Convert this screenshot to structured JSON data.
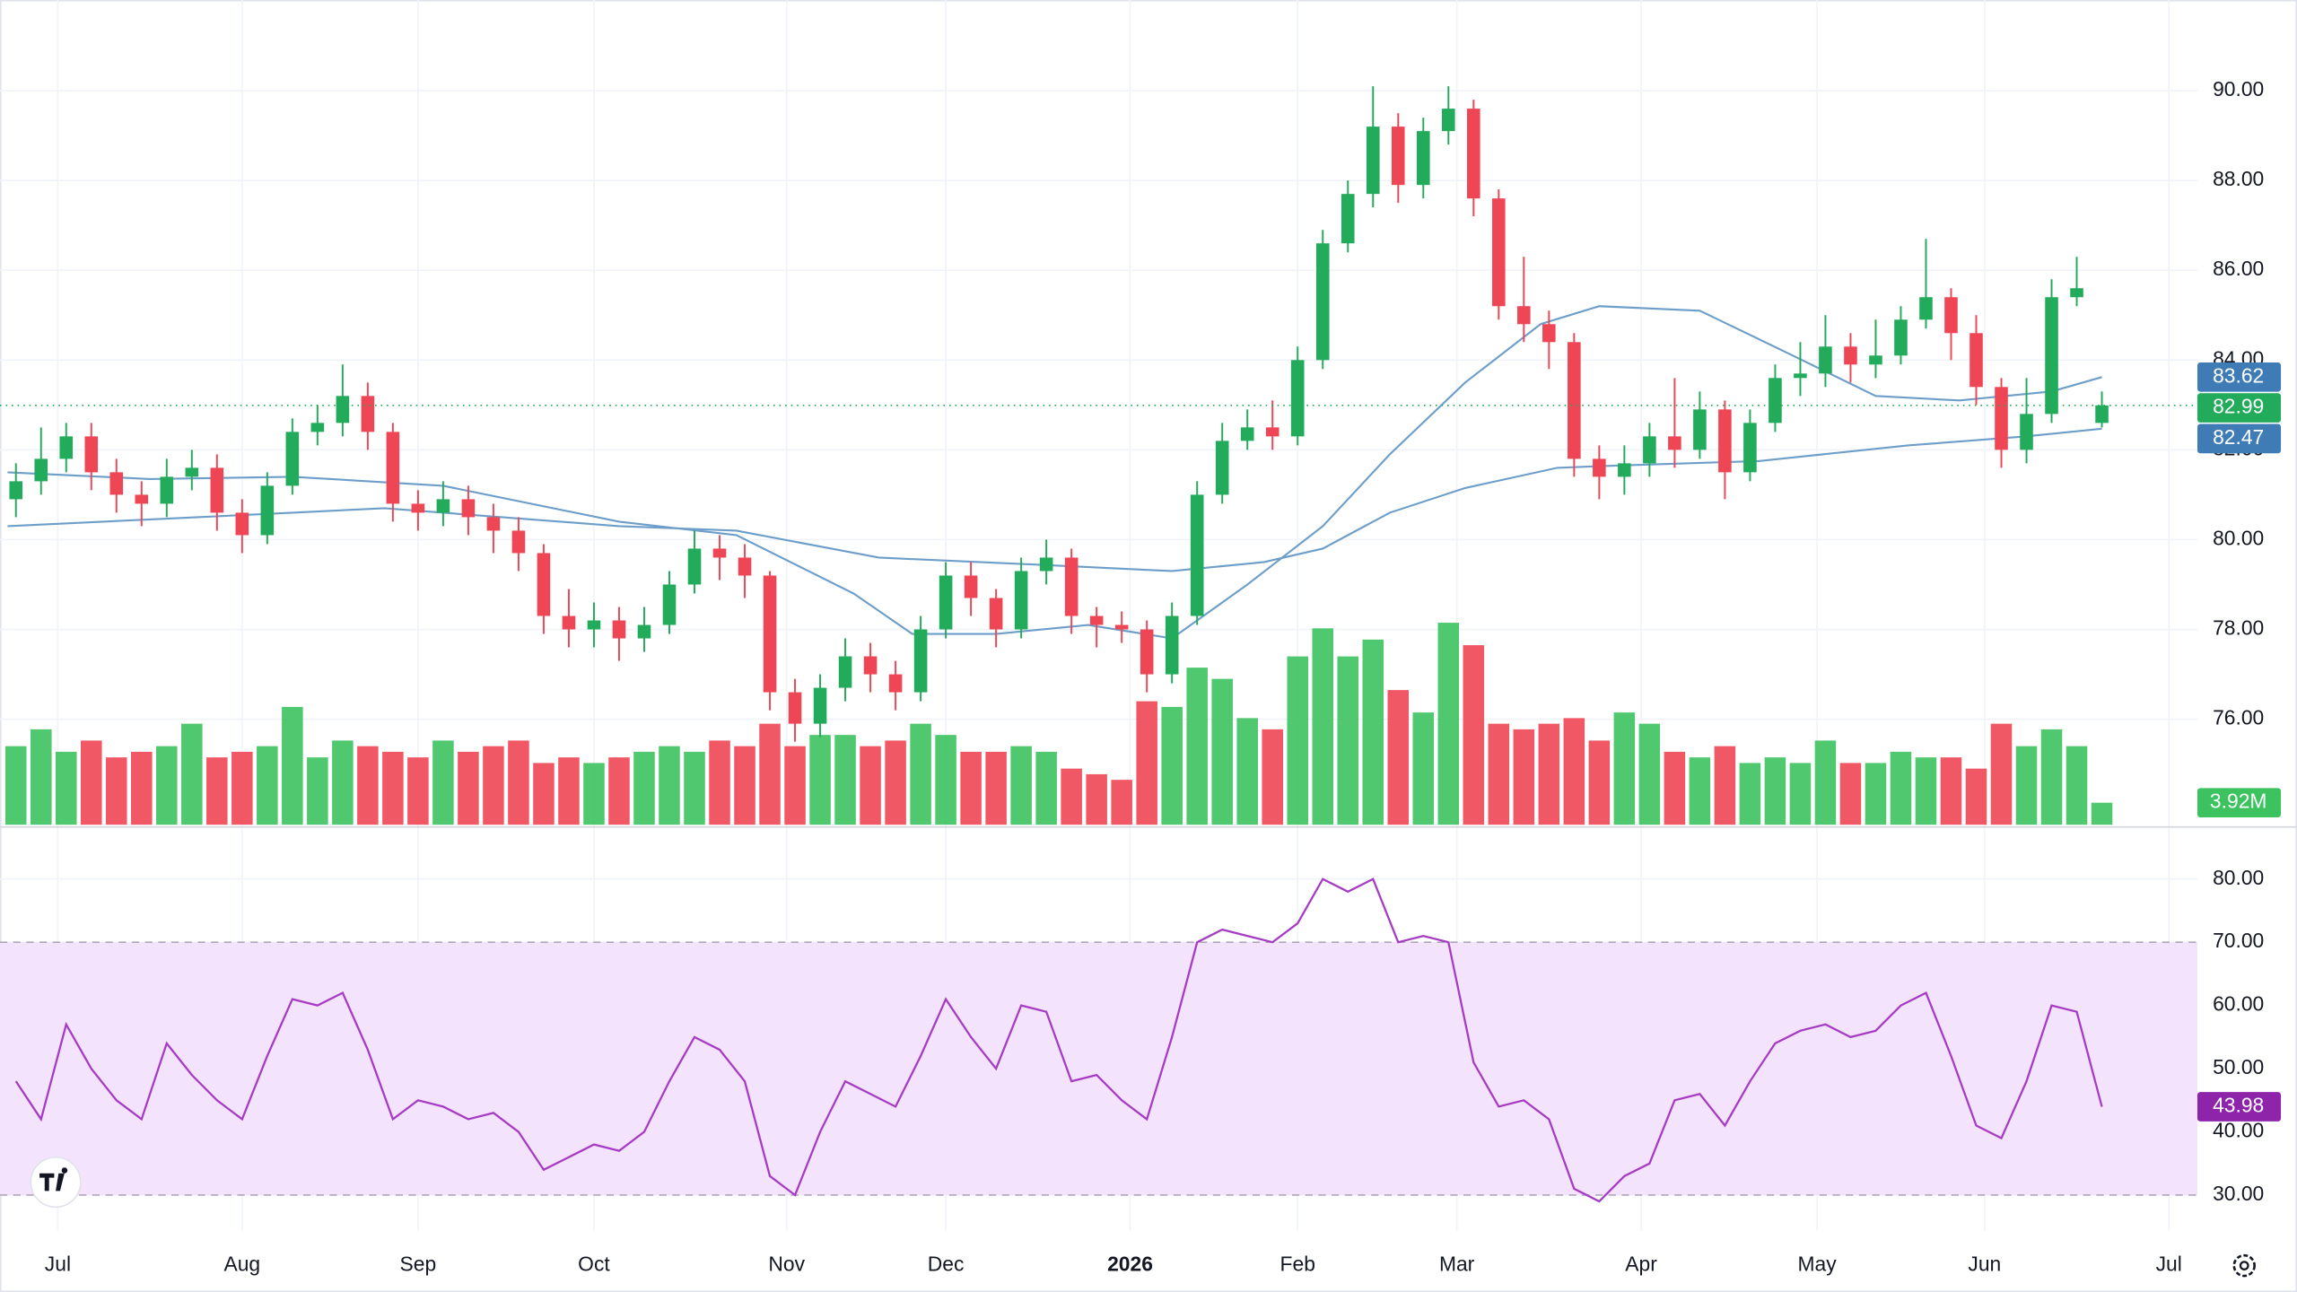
{
  "chart_data": [
    {
      "type": "candlestick",
      "x": [
        1,
        4,
        7,
        10,
        13,
        16,
        19,
        22,
        25,
        28,
        31,
        34,
        37,
        40,
        43,
        46,
        49,
        52,
        55,
        58,
        61,
        64,
        67,
        70,
        73,
        76,
        79,
        82,
        85,
        88,
        91,
        94,
        97,
        100,
        103,
        106,
        109,
        112,
        115,
        118,
        121,
        124,
        127,
        130,
        133,
        136,
        139,
        142,
        145,
        148,
        151,
        154,
        157,
        160,
        163,
        166,
        169,
        172,
        175,
        178,
        181,
        184,
        187,
        190,
        193,
        196,
        199,
        202,
        205,
        208,
        211,
        214,
        217,
        220,
        223,
        226,
        229,
        232,
        235,
        238,
        241,
        244,
        247,
        250
      ],
      "open": [
        80.9,
        81.3,
        81.8,
        82.3,
        81.5,
        81.0,
        80.8,
        81.4,
        81.6,
        80.6,
        80.1,
        81.2,
        82.4,
        82.6,
        83.2,
        82.4,
        80.8,
        80.6,
        80.9,
        80.5,
        80.2,
        79.7,
        78.3,
        78.0,
        78.2,
        77.8,
        78.1,
        79.0,
        79.8,
        79.6,
        79.2,
        76.6,
        75.9,
        76.7,
        77.4,
        77.0,
        76.6,
        78.0,
        79.2,
        78.7,
        78.0,
        79.3,
        79.6,
        78.3,
        78.1,
        78.0,
        77.0,
        78.3,
        81.0,
        82.2,
        82.5,
        82.3,
        84.0,
        86.6,
        87.7,
        89.2,
        87.9,
        89.1,
        89.6,
        87.6,
        85.2,
        84.8,
        84.4,
        81.8,
        81.4,
        81.7,
        82.3,
        82.0,
        82.9,
        81.5,
        82.6,
        83.6,
        83.7,
        84.3,
        83.9,
        84.1,
        84.9,
        85.4,
        84.6,
        83.4,
        82.0,
        82.8,
        85.4,
        82.6
      ],
      "high": [
        81.7,
        82.5,
        82.6,
        82.6,
        81.8,
        81.3,
        81.8,
        82.0,
        81.9,
        80.9,
        81.5,
        82.7,
        83.0,
        83.9,
        83.5,
        82.6,
        81.1,
        81.3,
        81.2,
        80.8,
        80.5,
        79.9,
        78.9,
        78.6,
        78.5,
        78.5,
        79.3,
        80.2,
        80.1,
        79.9,
        79.3,
        76.9,
        77.0,
        77.8,
        77.7,
        77.3,
        78.3,
        79.5,
        79.5,
        78.9,
        79.6,
        80.0,
        79.8,
        78.5,
        78.4,
        78.2,
        78.6,
        81.3,
        82.6,
        82.9,
        83.1,
        84.3,
        86.9,
        88.0,
        90.1,
        89.5,
        89.4,
        90.1,
        89.8,
        87.8,
        86.3,
        85.1,
        84.6,
        82.1,
        82.1,
        82.6,
        83.6,
        83.3,
        83.1,
        82.9,
        83.9,
        84.4,
        85.0,
        84.6,
        84.9,
        85.2,
        86.7,
        85.6,
        85.0,
        83.6,
        83.6,
        85.8,
        86.3,
        83.3
      ],
      "low": [
        80.5,
        81.0,
        81.5,
        81.1,
        80.6,
        80.3,
        80.5,
        81.1,
        80.2,
        79.7,
        79.9,
        81.0,
        82.1,
        82.3,
        82.0,
        80.4,
        80.2,
        80.3,
        80.1,
        79.7,
        79.3,
        77.9,
        77.6,
        77.6,
        77.3,
        77.5,
        77.9,
        78.8,
        79.1,
        78.7,
        76.2,
        75.5,
        75.6,
        76.4,
        76.6,
        76.2,
        76.4,
        77.8,
        78.3,
        77.6,
        77.8,
        79.0,
        77.9,
        77.6,
        77.7,
        76.6,
        76.8,
        78.1,
        80.8,
        82.0,
        82.0,
        82.1,
        83.8,
        86.4,
        87.4,
        87.5,
        87.6,
        88.8,
        87.2,
        84.9,
        84.4,
        83.8,
        81.4,
        80.9,
        81.0,
        81.4,
        81.6,
        81.8,
        80.9,
        81.3,
        82.4,
        83.2,
        83.4,
        83.5,
        83.6,
        83.9,
        84.7,
        84.0,
        83.0,
        81.6,
        81.7,
        82.6,
        85.2,
        82.5
      ],
      "close": [
        81.3,
        81.8,
        82.3,
        81.5,
        81.0,
        80.8,
        81.4,
        81.6,
        80.6,
        80.1,
        81.2,
        82.4,
        82.6,
        83.2,
        82.4,
        80.8,
        80.6,
        80.9,
        80.5,
        80.2,
        79.7,
        78.3,
        78.0,
        78.2,
        77.8,
        78.1,
        79.0,
        79.8,
        79.6,
        79.2,
        76.6,
        75.9,
        76.7,
        77.4,
        77.0,
        76.6,
        78.0,
        79.2,
        78.7,
        78.0,
        79.3,
        79.6,
        78.3,
        78.1,
        78.0,
        77.0,
        78.3,
        81.0,
        82.2,
        82.5,
        82.3,
        84.0,
        86.6,
        87.7,
        89.2,
        87.9,
        89.1,
        89.6,
        87.6,
        85.2,
        84.8,
        84.4,
        81.8,
        81.4,
        81.7,
        82.3,
        82.0,
        82.9,
        81.5,
        82.6,
        83.6,
        83.7,
        84.3,
        83.9,
        84.1,
        84.9,
        85.4,
        84.6,
        83.4,
        82.0,
        82.8,
        85.4,
        85.6,
        82.99
      ],
      "volume": [
        14,
        17,
        13,
        15,
        12,
        13,
        14,
        18,
        12,
        13,
        14,
        21,
        12,
        15,
        14,
        13,
        12,
        15,
        13,
        14,
        15,
        11,
        12,
        11,
        12,
        13,
        14,
        13,
        15,
        14,
        18,
        14,
        16,
        16,
        14,
        15,
        18,
        16,
        13,
        13,
        14,
        13,
        10,
        9,
        8,
        22,
        21,
        28,
        26,
        19,
        17,
        30,
        35,
        30,
        33,
        24,
        20,
        36,
        32,
        18,
        17,
        18,
        19,
        15,
        20,
        18,
        13,
        12,
        14,
        11,
        12,
        11,
        15,
        11,
        11,
        13,
        12,
        12,
        10,
        18,
        14,
        17,
        14,
        3.92
      ],
      "volume_label": "3.92M",
      "up_color": "#22ab5a",
      "down_color": "#ef4655",
      "volume_up_color": "#3cc25f",
      "volume_down_color": "#ef4655",
      "lines": [
        {
          "color": "#6d9ec9",
          "badge_color": "#3f7cb6",
          "x": [
            0,
            17,
            34,
            52,
            73,
            87,
            101,
            108,
            118,
            129,
            139,
            148,
            157,
            165,
            174,
            183,
            190,
            202,
            212,
            223,
            233,
            244,
            250
          ],
          "values": [
            81.5,
            81.35,
            81.4,
            81.2,
            80.4,
            80.1,
            78.8,
            77.9,
            77.9,
            78.1,
            77.8,
            79.0,
            80.3,
            81.9,
            83.5,
            84.8,
            85.2,
            85.1,
            84.2,
            83.2,
            83.1,
            83.3,
            83.62
          ]
        },
        {
          "color": "#6d9ec9",
          "badge_color": "#3f7cb6",
          "x": [
            0,
            17,
            34,
            45,
            59,
            73,
            87,
            104,
            122,
            139,
            150,
            157,
            165,
            174,
            185,
            192,
            209,
            227,
            241,
            250
          ],
          "values": [
            80.3,
            80.45,
            80.6,
            80.7,
            80.5,
            80.3,
            80.2,
            79.6,
            79.45,
            79.3,
            79.5,
            79.8,
            80.6,
            81.15,
            81.6,
            81.65,
            81.75,
            82.1,
            82.3,
            82.47
          ]
        }
      ],
      "xlim": [
        -0.9,
        261.4
      ],
      "xticks": [
        {
          "value": 6,
          "label": "Jul"
        },
        {
          "value": 28,
          "label": "Aug"
        },
        {
          "value": 49,
          "label": "Sep"
        },
        {
          "value": 70,
          "label": "Oct"
        },
        {
          "value": 93,
          "label": "Nov"
        },
        {
          "value": 112,
          "label": "Dec"
        },
        {
          "value": 134,
          "label": "2026"
        },
        {
          "value": 154,
          "label": "Feb"
        },
        {
          "value": 173,
          "label": "Mar"
        },
        {
          "value": 195,
          "label": "Apr"
        },
        {
          "value": 216,
          "label": "May"
        },
        {
          "value": 236,
          "label": "Jun"
        },
        {
          "value": 258,
          "label": "Jul"
        }
      ],
      "bold_xticks": [
        6
      ],
      "ylim": [
        73.65,
        92.02
      ],
      "yticks": [
        {
          "value": 76,
          "label": "76.00"
        },
        {
          "value": 78,
          "label": "78.00"
        },
        {
          "value": 80,
          "label": "80.00"
        },
        {
          "value": 82,
          "label": "82.00"
        },
        {
          "value": 84,
          "label": "84.00"
        },
        {
          "value": 86,
          "label": "86.00"
        },
        {
          "value": 88,
          "label": "88.00"
        },
        {
          "value": 90,
          "label": "90.00"
        }
      ],
      "y2lim": [
        0,
        147
      ],
      "grid": true
    },
    {
      "type": "line",
      "x": [
        1,
        4,
        7,
        10,
        13,
        16,
        19,
        22,
        25,
        28,
        31,
        34,
        37,
        40,
        43,
        46,
        49,
        52,
        55,
        58,
        61,
        64,
        67,
        70,
        73,
        76,
        79,
        82,
        85,
        88,
        91,
        94,
        97,
        100,
        103,
        106,
        109,
        112,
        115,
        118,
        121,
        124,
        127,
        130,
        133,
        136,
        139,
        142,
        145,
        148,
        151,
        154,
        157,
        160,
        163,
        166,
        169,
        172,
        175,
        178,
        181,
        184,
        187,
        190,
        193,
        196,
        199,
        202,
        205,
        208,
        211,
        214,
        217,
        220,
        223,
        226,
        229,
        232,
        235,
        238,
        241,
        244,
        247,
        250
      ],
      "values": [
        48,
        42,
        57,
        50,
        45,
        42,
        54,
        49,
        45,
        42,
        52,
        61,
        60,
        62,
        53,
        42,
        45,
        44,
        42,
        43,
        40,
        34,
        36,
        38,
        37,
        40,
        48,
        55,
        53,
        48,
        33,
        30,
        40,
        48,
        46,
        44,
        52,
        61,
        55,
        50,
        60,
        59,
        48,
        49,
        45,
        42,
        55,
        70,
        72,
        71,
        70,
        73,
        80,
        78,
        80,
        70,
        71,
        70,
        51,
        44,
        45,
        42,
        31,
        29,
        33,
        35,
        45,
        46,
        41,
        48,
        54,
        56,
        57,
        55,
        56,
        60,
        62,
        52,
        41,
        39,
        48,
        60,
        59,
        43.98
      ],
      "color": "#a63bc4",
      "badge_color": "#8e24aa",
      "band": [
        30,
        70
      ],
      "band_color": "#f3e3fc",
      "xlim": [
        -0.9,
        261.4
      ],
      "ylim": [
        24.4,
        87.9
      ],
      "yticks": [
        {
          "value": 30,
          "label": "30.00"
        },
        {
          "value": 40,
          "label": "40.00"
        },
        {
          "value": 50,
          "label": "50.00"
        },
        {
          "value": 60,
          "label": "60.00"
        },
        {
          "value": 70,
          "label": "70.00"
        },
        {
          "value": 80,
          "label": "80.00"
        }
      ],
      "grid": true
    }
  ]
}
